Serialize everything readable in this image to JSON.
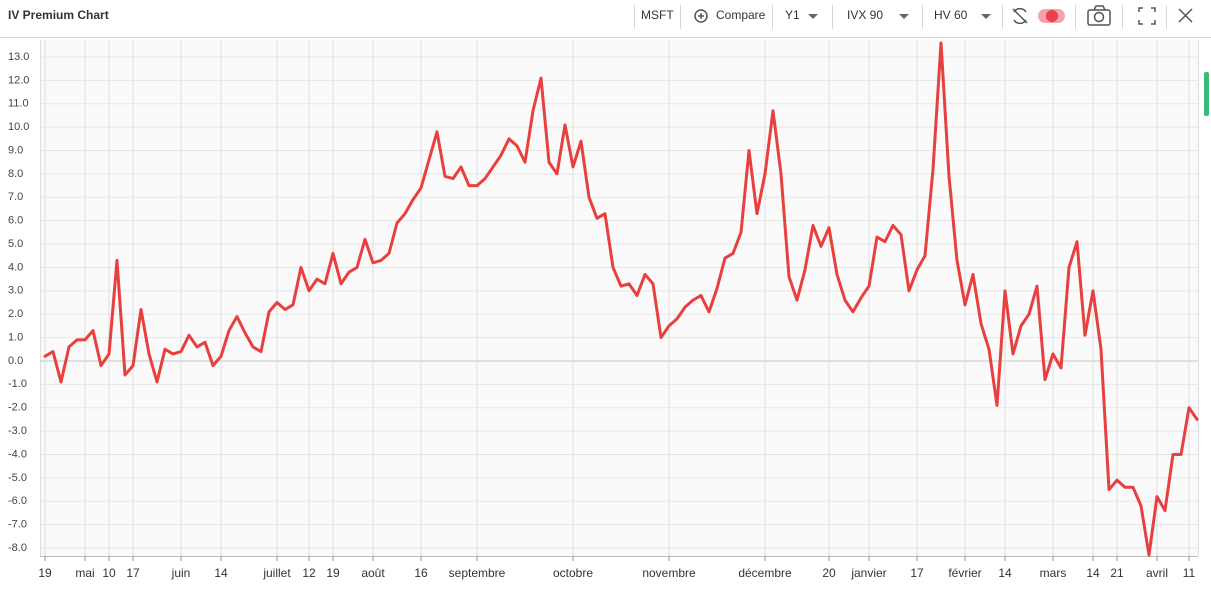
{
  "toolbar": {
    "symbol": "MSFT",
    "compare": "Compare",
    "period": "Y1",
    "iv": "IVX 90",
    "hv": "HV 60"
  },
  "chart_data": {
    "type": "line",
    "title": "IV Premium Chart",
    "color": "#e8403f",
    "grid": true,
    "categories": [
      "19",
      null,
      null,
      null,
      null,
      "mai",
      null,
      null,
      "10",
      null,
      null,
      "17",
      null,
      null,
      null,
      null,
      null,
      "juin",
      null,
      null,
      null,
      null,
      "14",
      null,
      null,
      null,
      null,
      null,
      null,
      "juillet",
      null,
      null,
      null,
      "12",
      null,
      null,
      "19",
      null,
      null,
      null,
      null,
      "août",
      null,
      null,
      null,
      null,
      null,
      "16",
      null,
      null,
      null,
      null,
      null,
      null,
      "septembre",
      null,
      null,
      null,
      null,
      null,
      null,
      null,
      null,
      null,
      null,
      null,
      "octobre",
      null,
      null,
      null,
      null,
      null,
      null,
      null,
      null,
      null,
      null,
      null,
      "novembre",
      null,
      null,
      null,
      null,
      null,
      null,
      null,
      null,
      null,
      null,
      null,
      "décembre",
      null,
      null,
      null,
      null,
      null,
      null,
      null,
      "20",
      null,
      null,
      null,
      null,
      "janvier",
      null,
      null,
      null,
      null,
      null,
      "17",
      null,
      null,
      null,
      null,
      null,
      "février",
      null,
      null,
      null,
      null,
      "14",
      null,
      null,
      null,
      null,
      null,
      "mars",
      null,
      null,
      null,
      null,
      "14",
      null,
      null,
      "21",
      null,
      null,
      null,
      null,
      "avril",
      null,
      null,
      null,
      "11",
      null
    ],
    "values": [
      0.2,
      0.4,
      -0.9,
      0.6,
      0.9,
      0.9,
      1.3,
      -0.2,
      0.3,
      4.3,
      -0.6,
      -0.2,
      2.2,
      0.3,
      -0.9,
      0.5,
      0.3,
      0.4,
      1.1,
      0.6,
      0.8,
      -0.2,
      0.2,
      1.3,
      1.9,
      1.2,
      0.6,
      0.4,
      2.1,
      2.5,
      2.2,
      2.4,
      4.0,
      3.0,
      3.5,
      3.3,
      4.6,
      3.3,
      3.8,
      4.0,
      5.2,
      4.2,
      4.3,
      4.6,
      5.9,
      6.3,
      6.9,
      7.4,
      8.6,
      9.8,
      7.9,
      7.8,
      8.3,
      7.5,
      7.5,
      7.8,
      8.3,
      8.8,
      9.5,
      9.2,
      8.5,
      10.7,
      12.1,
      8.5,
      8.0,
      10.1,
      8.3,
      9.4,
      7.0,
      6.1,
      6.3,
      4.0,
      3.2,
      3.3,
      2.8,
      3.7,
      3.3,
      1.0,
      1.5,
      1.8,
      2.3,
      2.6,
      2.8,
      2.1,
      3.1,
      4.4,
      4.6,
      5.5,
      9.0,
      6.3,
      8.0,
      10.7,
      8.0,
      3.6,
      2.6,
      3.9,
      5.8,
      4.9,
      5.7,
      3.7,
      2.6,
      2.1,
      2.7,
      3.2,
      5.3,
      5.1,
      5.8,
      5.4,
      3.0,
      3.9,
      4.5,
      8.2,
      13.6,
      7.9,
      4.3,
      2.4,
      3.7,
      1.6,
      0.5,
      -1.9,
      3.0,
      0.3,
      1.5,
      2.0,
      3.2,
      -0.8,
      0.3,
      -0.3,
      4.0,
      5.1,
      1.1,
      3.0,
      0.5,
      -5.5,
      -5.1,
      -5.4,
      -5.4,
      -6.2,
      -8.3,
      -5.8,
      -6.4,
      -4.0,
      -4.0,
      -2.0,
      -2.5
    ],
    "ylim": [
      -8.3,
      13.6
    ],
    "yticks": [
      {
        "value": 13,
        "label": "13.0"
      },
      {
        "value": 12,
        "label": "12.0"
      },
      {
        "value": 11,
        "label": "11.0"
      },
      {
        "value": 10,
        "label": "10.0"
      },
      {
        "value": 9,
        "label": "9.0"
      },
      {
        "value": 8,
        "label": "8.0"
      },
      {
        "value": 7,
        "label": "7.0"
      },
      {
        "value": 6,
        "label": "6.0"
      },
      {
        "value": 5,
        "label": "5.0"
      },
      {
        "value": 4,
        "label": "4.0"
      },
      {
        "value": 3,
        "label": "3.0"
      },
      {
        "value": 2,
        "label": "2.0"
      },
      {
        "value": 1,
        "label": "1.0"
      },
      {
        "value": 0,
        "label": "0.0"
      },
      {
        "value": -1,
        "label": "-1.0"
      },
      {
        "value": -2,
        "label": "-2.0"
      },
      {
        "value": -3,
        "label": "-3.0"
      },
      {
        "value": -4,
        "label": "-4.0"
      },
      {
        "value": -5,
        "label": "-5.0"
      },
      {
        "value": -6,
        "label": "-6.0"
      },
      {
        "value": -7,
        "label": "-7.0"
      },
      {
        "value": -8,
        "label": "-8.0"
      }
    ]
  }
}
